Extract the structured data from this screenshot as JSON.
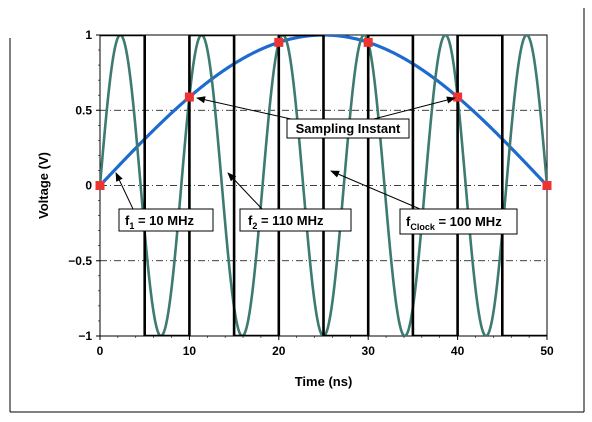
{
  "chart_data": {
    "type": "line",
    "title": "",
    "xlabel": "Time (ns)",
    "ylabel": "Voltage (V)",
    "xlim": [
      0,
      50
    ],
    "ylim": [
      -1,
      1
    ],
    "x_ticks": [
      0,
      10,
      20,
      30,
      40,
      50
    ],
    "x_tick_labels": [
      "0",
      "10",
      "20",
      "30",
      "40",
      "50"
    ],
    "y_ticks": [
      -1,
      -0.5,
      0,
      0.5,
      1
    ],
    "y_tick_labels": [
      "−1",
      "−0.5",
      "0",
      "0.5",
      "1"
    ],
    "grid": {
      "x_vertical_lines": true,
      "y_dashed_lines": true
    },
    "series": [
      {
        "name": "f1 = 10 MHz",
        "kind": "sine",
        "frequency_mhz": 10,
        "amplitude": 1,
        "color": "#1e6bd0"
      },
      {
        "name": "f2 = 110 MHz",
        "kind": "sine",
        "frequency_mhz": 110,
        "amplitude": 1,
        "color": "#3d7a70"
      },
      {
        "name": "fClock = 100 MHz",
        "kind": "square",
        "frequency_mhz": 100,
        "high": 1,
        "low": -1,
        "color": "#000000"
      }
    ],
    "sampling_points": {
      "x": [
        0,
        10,
        20,
        30,
        40,
        50
      ],
      "y": [
        0,
        0.588,
        0.951,
        0.951,
        0.588,
        0
      ],
      "color": "#ee3333"
    },
    "annotations": [
      {
        "id": "sampling",
        "text": "Sampling Instant"
      },
      {
        "id": "f1",
        "text_main": "f",
        "text_sub": "1",
        "text_rest": " = 10 MHz"
      },
      {
        "id": "f2",
        "text_main": "f",
        "text_sub": "2",
        "text_rest": " = 110 MHz"
      },
      {
        "id": "fclock",
        "text_main": "f",
        "text_sub": "Clock",
        "text_rest": " = 100 MHz"
      }
    ]
  }
}
